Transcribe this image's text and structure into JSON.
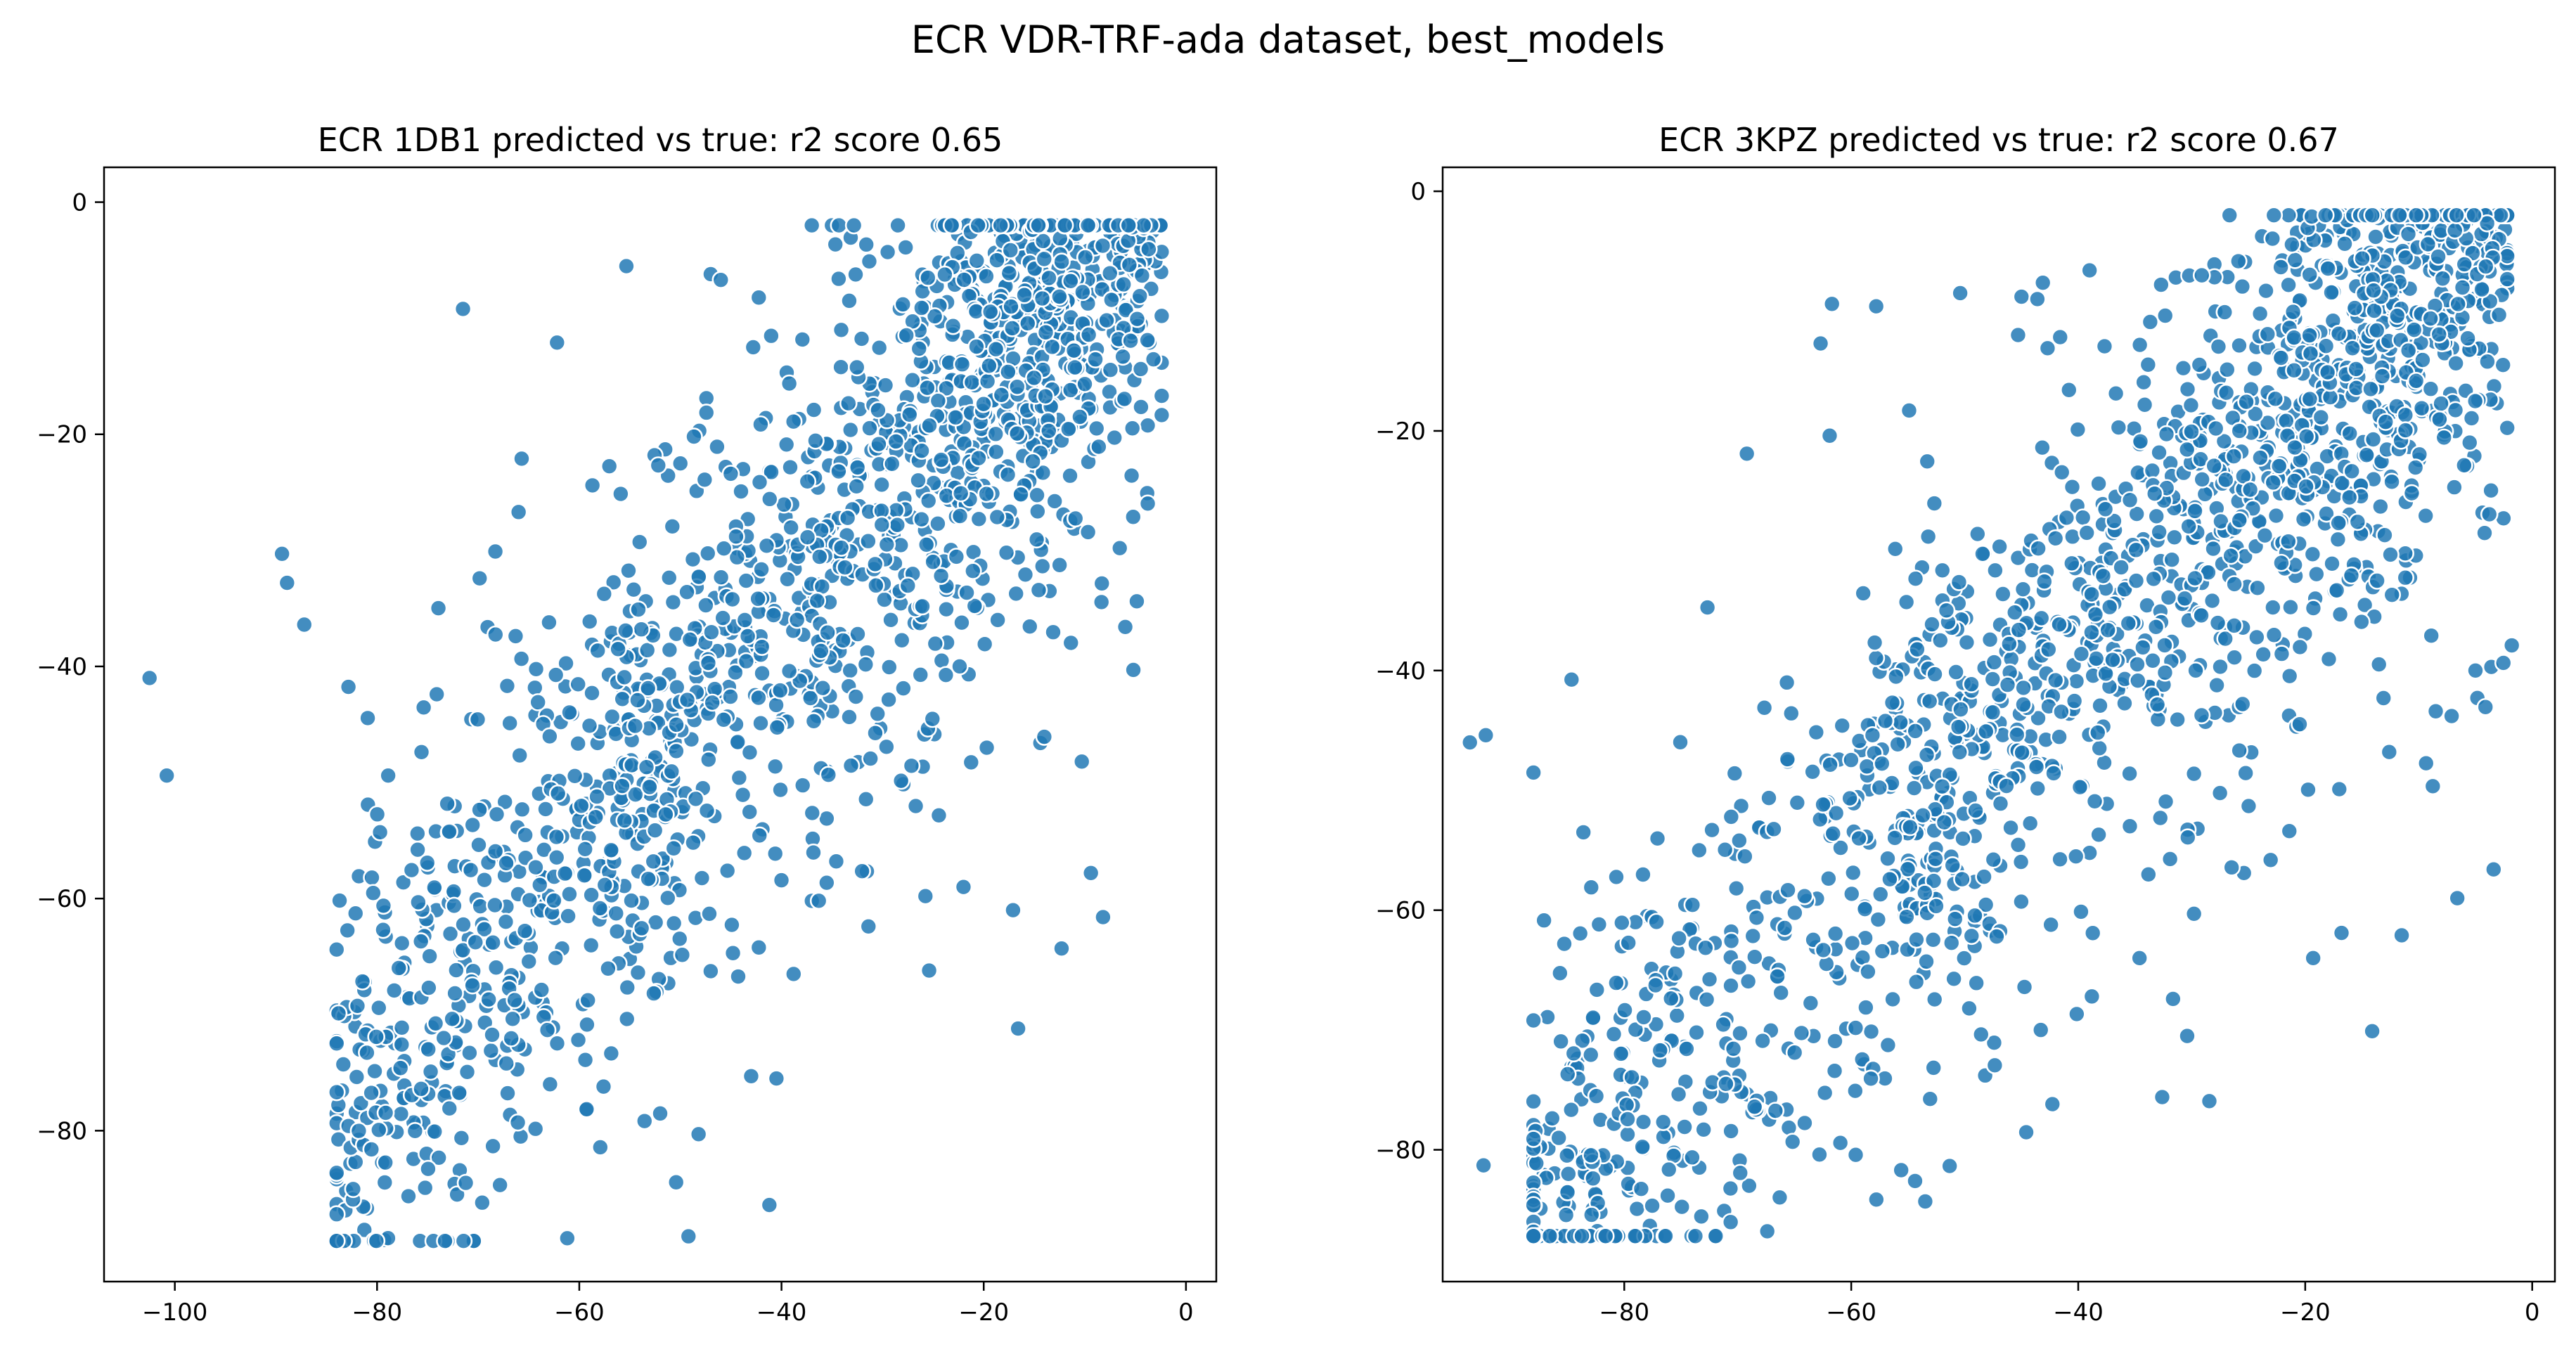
{
  "figure_title": "ECR VDR-TRF-ada dataset, best_models",
  "chart_data": [
    {
      "type": "scatter",
      "title": "ECR 1DB1 predicted vs true: r2 score 0.65",
      "xlabel": "",
      "ylabel": "",
      "xlim": [
        -107,
        3
      ],
      "ylim": [
        -93,
        3
      ],
      "xticks": [
        -100,
        -80,
        -60,
        -40,
        -20,
        0
      ],
      "yticks": [
        0,
        -20,
        -40,
        -60,
        -80
      ],
      "xtick_labels": [
        "−100",
        "−80",
        "−60",
        "−40",
        "−20",
        "0"
      ],
      "ytick_labels": [
        "0",
        "−20",
        "−40",
        "−60",
        "−80"
      ],
      "grid": false,
      "legend": "none",
      "marker_color": "#1f77b4",
      "marker_edge_color": "#ffffff",
      "approximate_r2": 0.65,
      "approximate_point_count": 1800,
      "points": [
        [
          -102.5,
          -41.0
        ],
        [
          -100.8,
          -49.4
        ],
        [
          -89.4,
          -30.3
        ],
        [
          -88.9,
          -32.8
        ],
        [
          -87.2,
          -36.4
        ],
        [
          -71.5,
          -9.2
        ],
        [
          -62.2,
          -12.1
        ],
        [
          -47.0,
          -6.2
        ],
        [
          -46.0,
          -6.7
        ],
        [
          -42.8,
          -12.5
        ],
        [
          -81.0,
          -86.7
        ],
        [
          -69.6,
          -86.2
        ],
        [
          -49.2,
          -89.1
        ],
        [
          -41.2,
          -86.4
        ],
        [
          -48.2,
          -80.3
        ],
        [
          -65.8,
          -80.5
        ],
        [
          -43.0,
          -75.3
        ],
        [
          -40.5,
          -75.5
        ],
        [
          -22.0,
          -59.0
        ],
        [
          -17.1,
          -61.0
        ],
        [
          -8.2,
          -61.6
        ],
        [
          -16.6,
          -71.2
        ],
        [
          -12.3,
          -64.3
        ],
        [
          -25.4,
          -66.2
        ],
        [
          -82.1,
          -78.4
        ],
        [
          -79.5,
          -77.9
        ],
        [
          -76.1,
          -79.4
        ],
        [
          -73.2,
          -76.6
        ],
        [
          -80.2,
          -55.1
        ],
        [
          -78.9,
          -49.4
        ],
        [
          -76.0,
          -54.4
        ],
        [
          -74.1,
          -42.4
        ],
        [
          -66.0,
          -26.7
        ],
        [
          -68.3,
          -30.1
        ],
        [
          -65.7,
          -22.1
        ],
        [
          -58.7,
          -24.4
        ],
        [
          -51.5,
          -21.3
        ],
        [
          -43.8,
          -23.0
        ],
        [
          -36.8,
          -17.9
        ],
        [
          -30.8,
          -15.6
        ],
        [
          -29.5,
          -4.3
        ],
        [
          -24.4,
          -5.2
        ],
        [
          -33.3,
          -8.5
        ],
        [
          -5.2,
          -40.3
        ],
        [
          -6.0,
          -36.6
        ],
        [
          -10.3,
          -48.2
        ],
        [
          -14.4,
          -46.6
        ],
        [
          -19.7,
          -47.0
        ],
        [
          -31.4,
          -62.4
        ],
        [
          -37.0,
          -60.2
        ],
        [
          -44.8,
          -64.7
        ],
        [
          -51.2,
          -67.3
        ],
        [
          -55.0,
          -65.2
        ],
        [
          -57.6,
          -76.2
        ],
        [
          -59.4,
          -73.9
        ],
        [
          -62.6,
          -71.1
        ],
        [
          -67.4,
          -69.2
        ],
        [
          -70.9,
          -68.4
        ],
        [
          -74.6,
          -71.1
        ],
        [
          -77.3,
          -74.0
        ],
        [
          -56.3,
          -49.2
        ],
        [
          -52.4,
          -44.7
        ],
        [
          -48.4,
          -40.9
        ],
        [
          -45.2,
          -38.6
        ],
        [
          -41.3,
          -35.2
        ],
        [
          -38.7,
          -31.6
        ],
        [
          -35.0,
          -27.9
        ],
        [
          -32.3,
          -26.2
        ],
        [
          -29.4,
          -22.6
        ],
        [
          -26.7,
          -20.3
        ],
        [
          -23.4,
          -17.2
        ],
        [
          -20.2,
          -14.8
        ],
        [
          -17.6,
          -12.3
        ],
        [
          -14.3,
          -10.5
        ],
        [
          -11.5,
          -8.4
        ],
        [
          -8.8,
          -6.9
        ],
        [
          -6.2,
          -5.1
        ],
        [
          -4.4,
          -3.6
        ],
        [
          -3.3,
          -2.5
        ],
        [
          -60.4,
          -52.4
        ],
        [
          -63.7,
          -58.1
        ],
        [
          -67.2,
          -60.7
        ],
        [
          -69.6,
          -62.2
        ],
        [
          -58.2,
          -46.6
        ],
        [
          -54.0,
          -42.0
        ],
        [
          -50.4,
          -37.2
        ],
        [
          -46.6,
          -34.1
        ],
        [
          -43.1,
          -30.9
        ],
        [
          -39.6,
          -27.1
        ],
        [
          -36.4,
          -24.6
        ],
        [
          -33.7,
          -21.2
        ],
        [
          -30.4,
          -19.1
        ],
        [
          -27.6,
          -16.8
        ],
        [
          -24.9,
          -14.2
        ],
        [
          -21.6,
          -11.6
        ],
        [
          -18.4,
          -9.2
        ],
        [
          -15.6,
          -7.1
        ],
        [
          -12.6,
          -5.7
        ],
        [
          -9.7,
          -4.2
        ],
        [
          -7.1,
          -3.2
        ]
      ]
    },
    {
      "type": "scatter",
      "title": "ECR 3KPZ predicted vs true: r2 score 0.67",
      "xlabel": "",
      "ylabel": "",
      "xlim": [
        -96,
        2
      ],
      "ylim": [
        -91,
        2
      ],
      "xticks": [
        -80,
        -60,
        -40,
        -20,
        0
      ],
      "yticks": [
        0,
        -20,
        -40,
        -60,
        -80
      ],
      "xtick_labels": [
        "−80",
        "−60",
        "−40",
        "−20",
        "0"
      ],
      "ytick_labels": [
        "0",
        "−20",
        "−40",
        "−60",
        "−80"
      ],
      "grid": false,
      "legend": "none",
      "marker_color": "#1f77b4",
      "marker_edge_color": "#ffffff",
      "approximate_r2": 0.67,
      "approximate_point_count": 1800,
      "points": [
        [
          -93.6,
          -46.0
        ],
        [
          -92.2,
          -45.4
        ],
        [
          -92.4,
          -81.3
        ],
        [
          -87.1,
          -82.1
        ],
        [
          -83.6,
          -53.5
        ],
        [
          -67.4,
          -86.8
        ],
        [
          -71.2,
          -85.1
        ],
        [
          -69.0,
          -83.0
        ],
        [
          -55.6,
          -81.7
        ],
        [
          -62.8,
          -80.4
        ],
        [
          -61.7,
          -9.4
        ],
        [
          -57.8,
          -9.6
        ],
        [
          -45.0,
          -8.8
        ],
        [
          -43.6,
          -9.0
        ],
        [
          -50.4,
          -8.5
        ],
        [
          -45.3,
          -12.0
        ],
        [
          -42.7,
          -13.1
        ],
        [
          -62.7,
          -12.7
        ],
        [
          -54.9,
          -18.3
        ],
        [
          -61.9,
          -20.4
        ],
        [
          -69.2,
          -21.9
        ],
        [
          -39.0,
          -6.6
        ],
        [
          -32.7,
          -7.8
        ],
        [
          -31.4,
          -7.2
        ],
        [
          -28.0,
          -6.1
        ],
        [
          -6.6,
          -59.0
        ],
        [
          -16.8,
          -61.9
        ],
        [
          -11.5,
          -62.1
        ],
        [
          -19.3,
          -64.0
        ],
        [
          -14.1,
          -70.1
        ],
        [
          -30.4,
          -70.5
        ],
        [
          -32.6,
          -75.6
        ],
        [
          -3.4,
          -56.6
        ],
        [
          -1.8,
          -37.9
        ],
        [
          -3.6,
          -39.7
        ],
        [
          -7.1,
          -43.8
        ],
        [
          -13.1,
          -42.3
        ],
        [
          -82.1,
          -77.5
        ],
        [
          -78.5,
          -74.4
        ],
        [
          -74.7,
          -71.4
        ],
        [
          -71.0,
          -69.1
        ],
        [
          -66.5,
          -65.6
        ],
        [
          -63.1,
          -63.1
        ],
        [
          -58.8,
          -59.7
        ],
        [
          -55.4,
          -57.1
        ],
        [
          -51.3,
          -53.5
        ],
        [
          -47.5,
          -50.2
        ],
        [
          -44.2,
          -46.8
        ],
        [
          -40.8,
          -43.6
        ],
        [
          -37.5,
          -40.4
        ],
        [
          -34.1,
          -37.5
        ],
        [
          -30.8,
          -34.3
        ],
        [
          -27.3,
          -31.1
        ],
        [
          -24.0,
          -27.7
        ],
        [
          -20.6,
          -24.5
        ],
        [
          -17.3,
          -21.3
        ],
        [
          -13.9,
          -17.9
        ],
        [
          -10.6,
          -14.4
        ],
        [
          -7.4,
          -11.2
        ],
        [
          -4.6,
          -8.3
        ],
        [
          -3.0,
          -5.4
        ],
        [
          -2.4,
          -3.2
        ],
        [
          -8.2,
          -4.1
        ],
        [
          -12.4,
          -3.7
        ],
        [
          -16.1,
          -3.4
        ],
        [
          -20.7,
          -4.6
        ],
        [
          -25.3,
          -5.9
        ],
        [
          -78.0,
          -60.5
        ],
        [
          -73.4,
          -55.0
        ],
        [
          -69.7,
          -51.3
        ],
        [
          -65.6,
          -47.6
        ],
        [
          -60.8,
          -44.6
        ],
        [
          -57.5,
          -40.1
        ],
        [
          -53.1,
          -37.0
        ],
        [
          -49.8,
          -33.4
        ],
        [
          -45.3,
          -30.6
        ],
        [
          -41.7,
          -27.6
        ],
        [
          -38.2,
          -24.4
        ],
        [
          -34.6,
          -21.1
        ],
        [
          -31.2,
          -18.4
        ],
        [
          -27.6,
          -15.6
        ],
        [
          -24.3,
          -13.0
        ],
        [
          -20.9,
          -10.6
        ],
        [
          -17.5,
          -8.4
        ],
        [
          -14.2,
          -6.7
        ],
        [
          -10.9,
          -5.1
        ],
        [
          -48.2,
          -73.8
        ],
        [
          -43.3,
          -70.0
        ],
        [
          -38.8,
          -67.2
        ],
        [
          -34.6,
          -64.0
        ],
        [
          -29.8,
          -60.3
        ],
        [
          -25.4,
          -56.9
        ],
        [
          -21.4,
          -53.4
        ],
        [
          -17.0,
          -49.9
        ],
        [
          -12.6,
          -46.8
        ],
        [
          -8.5,
          -43.4
        ],
        [
          -5.0,
          -40.0
        ],
        [
          -84.1,
          -72.4
        ],
        [
          -80.3,
          -66.1
        ],
        [
          -77.6,
          -64.9
        ]
      ]
    }
  ]
}
